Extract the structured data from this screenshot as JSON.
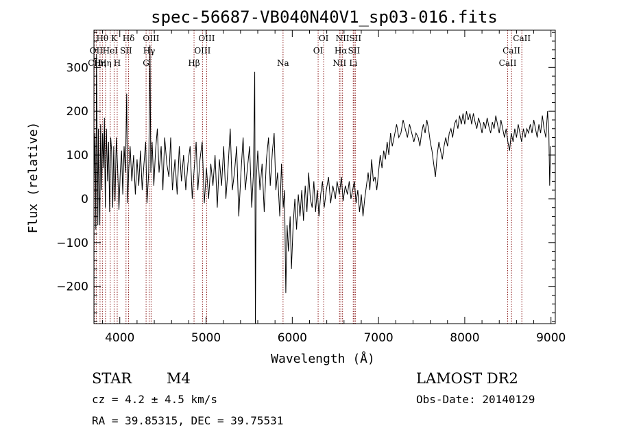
{
  "chart_data": {
    "type": "line",
    "title": "spec-56687-VB040N40V1_sp03-016.fits",
    "xlabel": "Wavelength (Å)",
    "ylabel": "Flux (relative)",
    "xlim": [
      3700,
      9050
    ],
    "ylim": [
      -285,
      385
    ],
    "xticks": [
      4000,
      5000,
      6000,
      7000,
      8000,
      9000
    ],
    "yticks": [
      -200,
      -100,
      0,
      100,
      200,
      300
    ],
    "series": [
      {
        "values": [
          [
            3700,
            40
          ],
          [
            3712,
            150
          ],
          [
            3722,
            -70
          ],
          [
            3730,
            330
          ],
          [
            3738,
            130
          ],
          [
            3745,
            -60
          ],
          [
            3752,
            160
          ],
          [
            3760,
            30
          ],
          [
            3768,
            -60
          ],
          [
            3778,
            170
          ],
          [
            3790,
            20
          ],
          [
            3800,
            150
          ],
          [
            3812,
            70
          ],
          [
            3822,
            185
          ],
          [
            3832,
            -20
          ],
          [
            3845,
            160
          ],
          [
            3858,
            40
          ],
          [
            3870,
            130
          ],
          [
            3882,
            -30
          ],
          [
            3895,
            140
          ],
          [
            3905,
            110
          ],
          [
            3918,
            -20
          ],
          [
            3930,
            120
          ],
          [
            3945,
            -5
          ],
          [
            3960,
            140
          ],
          [
            3975,
            70
          ],
          [
            3990,
            -25
          ],
          [
            4005,
            60
          ],
          [
            4020,
            110
          ],
          [
            4035,
            10
          ],
          [
            4050,
            120
          ],
          [
            4065,
            60
          ],
          [
            4080,
            240
          ],
          [
            4090,
            -10
          ],
          [
            4105,
            70
          ],
          [
            4120,
            120
          ],
          [
            4140,
            40
          ],
          [
            4160,
            100
          ],
          [
            4180,
            10
          ],
          [
            4200,
            90
          ],
          [
            4220,
            30
          ],
          [
            4240,
            110
          ],
          [
            4260,
            20
          ],
          [
            4280,
            80
          ],
          [
            4300,
            130
          ],
          [
            4315,
            -10
          ],
          [
            4335,
            60
          ],
          [
            4350,
            350
          ],
          [
            4360,
            60
          ],
          [
            4375,
            130
          ],
          [
            4395,
            30
          ],
          [
            4415,
            110
          ],
          [
            4435,
            160
          ],
          [
            4455,
            60
          ],
          [
            4480,
            120
          ],
          [
            4500,
            20
          ],
          [
            4520,
            140
          ],
          [
            4545,
            80
          ],
          [
            4570,
            50
          ],
          [
            4590,
            140
          ],
          [
            4610,
            20
          ],
          [
            4640,
            90
          ],
          [
            4665,
            10
          ],
          [
            4690,
            120
          ],
          [
            4715,
            40
          ],
          [
            4740,
            100
          ],
          [
            4765,
            20
          ],
          [
            4790,
            80
          ],
          [
            4815,
            120
          ],
          [
            4840,
            0
          ],
          [
            4860,
            60
          ],
          [
            4885,
            130
          ],
          [
            4905,
            20
          ],
          [
            4930,
            90
          ],
          [
            4955,
            130
          ],
          [
            4980,
            -10
          ],
          [
            5005,
            70
          ],
          [
            5030,
            0
          ],
          [
            5055,
            80
          ],
          [
            5080,
            30
          ],
          [
            5105,
            100
          ],
          [
            5130,
            -20
          ],
          [
            5155,
            90
          ],
          [
            5180,
            30
          ],
          [
            5205,
            120
          ],
          [
            5230,
            0
          ],
          [
            5255,
            70
          ],
          [
            5280,
            160
          ],
          [
            5305,
            20
          ],
          [
            5330,
            60
          ],
          [
            5355,
            120
          ],
          [
            5380,
            -40
          ],
          [
            5405,
            60
          ],
          [
            5430,
            140
          ],
          [
            5455,
            20
          ],
          [
            5480,
            70
          ],
          [
            5505,
            120
          ],
          [
            5530,
            -20
          ],
          [
            5550,
            60
          ],
          [
            5565,
            290
          ],
          [
            5572,
            -290
          ],
          [
            5582,
            40
          ],
          [
            5600,
            110
          ],
          [
            5625,
            20
          ],
          [
            5650,
            80
          ],
          [
            5675,
            -30
          ],
          [
            5700,
            90
          ],
          [
            5725,
            140
          ],
          [
            5745,
            30
          ],
          [
            5770,
            110
          ],
          [
            5790,
            150
          ],
          [
            5810,
            20
          ],
          [
            5830,
            60
          ],
          [
            5855,
            -40
          ],
          [
            5875,
            80
          ],
          [
            5895,
            -20
          ],
          [
            5910,
            20
          ],
          [
            5925,
            -215
          ],
          [
            5940,
            -60
          ],
          [
            5955,
            -120
          ],
          [
            5975,
            -40
          ],
          [
            5990,
            -160
          ],
          [
            6010,
            -60
          ],
          [
            6030,
            0
          ],
          [
            6050,
            -70
          ],
          [
            6070,
            10
          ],
          [
            6090,
            -40
          ],
          [
            6110,
            20
          ],
          [
            6130,
            -50
          ],
          [
            6150,
            30
          ],
          [
            6170,
            -30
          ],
          [
            6190,
            60
          ],
          [
            6210,
            0
          ],
          [
            6230,
            -20
          ],
          [
            6250,
            40
          ],
          [
            6270,
            -30
          ],
          [
            6290,
            20
          ],
          [
            6310,
            -40
          ],
          [
            6330,
            10
          ],
          [
            6350,
            40
          ],
          [
            6370,
            -20
          ],
          [
            6395,
            20
          ],
          [
            6420,
            50
          ],
          [
            6445,
            -10
          ],
          [
            6470,
            30
          ],
          [
            6500,
            0
          ],
          [
            6520,
            40
          ],
          [
            6545,
            10
          ],
          [
            6570,
            50
          ],
          [
            6590,
            -5
          ],
          [
            6615,
            30
          ],
          [
            6640,
            10
          ],
          [
            6660,
            40
          ],
          [
            6680,
            0
          ],
          [
            6700,
            20
          ],
          [
            6720,
            40
          ],
          [
            6740,
            -10
          ],
          [
            6760,
            20
          ],
          [
            6780,
            -30
          ],
          [
            6800,
            10
          ],
          [
            6820,
            -40
          ],
          [
            6840,
            0
          ],
          [
            6860,
            30
          ],
          [
            6880,
            60
          ],
          [
            6900,
            20
          ],
          [
            6920,
            90
          ],
          [
            6940,
            40
          ],
          [
            6960,
            50
          ],
          [
            6980,
            20
          ],
          [
            7000,
            60
          ],
          [
            7020,
            100
          ],
          [
            7040,
            70
          ],
          [
            7060,
            110
          ],
          [
            7080,
            90
          ],
          [
            7100,
            130
          ],
          [
            7120,
            100
          ],
          [
            7140,
            150
          ],
          [
            7160,
            120
          ],
          [
            7180,
            140
          ],
          [
            7210,
            170
          ],
          [
            7235,
            140
          ],
          [
            7260,
            150
          ],
          [
            7285,
            180
          ],
          [
            7310,
            160
          ],
          [
            7335,
            140
          ],
          [
            7360,
            170
          ],
          [
            7385,
            150
          ],
          [
            7410,
            130
          ],
          [
            7435,
            150
          ],
          [
            7460,
            140
          ],
          [
            7480,
            120
          ],
          [
            7500,
            150
          ],
          [
            7520,
            170
          ],
          [
            7540,
            150
          ],
          [
            7560,
            180
          ],
          [
            7580,
            160
          ],
          [
            7600,
            130
          ],
          [
            7620,
            110
          ],
          [
            7640,
            80
          ],
          [
            7660,
            50
          ],
          [
            7680,
            100
          ],
          [
            7700,
            130
          ],
          [
            7720,
            110
          ],
          [
            7740,
            90
          ],
          [
            7760,
            120
          ],
          [
            7780,
            140
          ],
          [
            7800,
            120
          ],
          [
            7820,
            150
          ],
          [
            7840,
            160
          ],
          [
            7860,
            140
          ],
          [
            7880,
            170
          ],
          [
            7900,
            180
          ],
          [
            7920,
            160
          ],
          [
            7940,
            190
          ],
          [
            7960,
            170
          ],
          [
            7980,
            195
          ],
          [
            8000,
            170
          ],
          [
            8020,
            200
          ],
          [
            8040,
            180
          ],
          [
            8060,
            195
          ],
          [
            8080,
            170
          ],
          [
            8100,
            195
          ],
          [
            8120,
            175
          ],
          [
            8140,
            160
          ],
          [
            8160,
            185
          ],
          [
            8180,
            170
          ],
          [
            8200,
            150
          ],
          [
            8220,
            175
          ],
          [
            8240,
            160
          ],
          [
            8260,
            185
          ],
          [
            8280,
            165
          ],
          [
            8300,
            150
          ],
          [
            8320,
            175
          ],
          [
            8340,
            160
          ],
          [
            8360,
            190
          ],
          [
            8380,
            170
          ],
          [
            8400,
            150
          ],
          [
            8420,
            180
          ],
          [
            8440,
            160
          ],
          [
            8460,
            140
          ],
          [
            8480,
            160
          ],
          [
            8500,
            130
          ],
          [
            8520,
            110
          ],
          [
            8540,
            150
          ],
          [
            8560,
            130
          ],
          [
            8580,
            160
          ],
          [
            8600,
            140
          ],
          [
            8620,
            170
          ],
          [
            8640,
            150
          ],
          [
            8660,
            130
          ],
          [
            8680,
            160
          ],
          [
            8700,
            140
          ],
          [
            8720,
            160
          ],
          [
            8740,
            150
          ],
          [
            8760,
            170
          ],
          [
            8780,
            150
          ],
          [
            8800,
            180
          ],
          [
            8820,
            160
          ],
          [
            8840,
            140
          ],
          [
            8860,
            170
          ],
          [
            8880,
            150
          ],
          [
            8900,
            190
          ],
          [
            8920,
            160
          ],
          [
            8940,
            140
          ],
          [
            8960,
            200
          ],
          [
            8975,
            150
          ],
          [
            8985,
            30
          ],
          [
            8995,
            120
          ]
        ]
      }
    ],
    "lines": [
      {
        "wl": 3705,
        "labels": [
          "CII"
        ],
        "row": 2
      },
      {
        "wl": 3727,
        "labels": [
          "OII"
        ],
        "row": 1
      },
      {
        "wl": 3771,
        "labels": [
          "Hη"
        ],
        "row": 2
      },
      {
        "wl": 3798,
        "labels": [
          "Hθ"
        ],
        "row": 0
      },
      {
        "wl": 3835,
        "labels": [
          "Hη"
        ],
        "row": 2
      },
      {
        "wl": 3889,
        "labels": [
          "HeI"
        ],
        "row": 1
      },
      {
        "wl": 3934,
        "labels": [
          "K"
        ],
        "row": 0
      },
      {
        "wl": 3970,
        "labels": [
          "H"
        ],
        "row": 2
      },
      {
        "wl": 4072,
        "labels": [
          "SII"
        ],
        "row": 1
      },
      {
        "wl": 4102,
        "labels": [
          "Hδ"
        ],
        "row": 0
      },
      {
        "wl": 4305,
        "labels": [
          "G"
        ],
        "row": 2
      },
      {
        "wl": 4340,
        "labels": [
          "Hγ"
        ],
        "row": 1
      },
      {
        "wl": 4363,
        "labels": [
          "OIII"
        ],
        "row": 0
      },
      {
        "wl": 4861,
        "labels": [
          "Hβ"
        ],
        "row": 2
      },
      {
        "wl": 4959,
        "labels": [
          "OIII"
        ],
        "row": 1
      },
      {
        "wl": 5007,
        "labels": [
          "OIII"
        ],
        "row": 0
      },
      {
        "wl": 5893,
        "labels": [
          "Na"
        ],
        "row": 2
      },
      {
        "wl": 6300,
        "labels": [
          "OI"
        ],
        "row": 1
      },
      {
        "wl": 6364,
        "labels": [
          "OI"
        ],
        "row": 0
      },
      {
        "wl": 6548,
        "labels": [
          "NII"
        ],
        "row": 2
      },
      {
        "wl": 6563,
        "labels": [
          "Hα"
        ],
        "row": 1
      },
      {
        "wl": 6583,
        "labels": [
          "NII"
        ],
        "row": 0
      },
      {
        "wl": 6707,
        "labels": [
          "Li"
        ],
        "row": 2
      },
      {
        "wl": 6716,
        "labels": [
          "SII"
        ],
        "row": 1
      },
      {
        "wl": 6731,
        "labels": [
          "SII"
        ],
        "row": 0
      },
      {
        "wl": 8498,
        "labels": [
          "CaII"
        ],
        "row": 2
      },
      {
        "wl": 8542,
        "labels": [
          "CaII"
        ],
        "row": 1
      },
      {
        "wl": 8662,
        "labels": [
          "CaII"
        ],
        "row": 0
      }
    ],
    "grid": false,
    "line_color": "#000000",
    "marker_color": "#8b1a1a"
  },
  "footer": {
    "type_label": "STAR",
    "subclass": "M4",
    "cz": "cz = 4.2 ± 4.5 km/s",
    "radec": "RA =  39.85315, DEC =  39.75531",
    "survey": "LAMOST DR2",
    "obsdate": "Obs-Date: 20140129"
  }
}
